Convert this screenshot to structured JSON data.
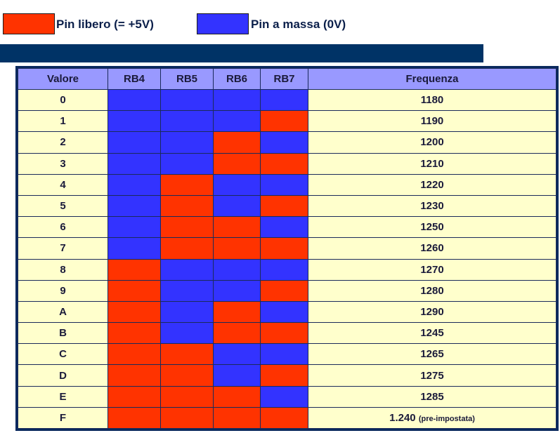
{
  "legend": [
    {
      "label": "Pin libero (= +5V)",
      "color": "#ff3300"
    },
    {
      "label": "Pin a massa (0V)",
      "color": "#3333ff"
    }
  ],
  "colors": {
    "high": "#ff3300",
    "low": "#3333ff"
  },
  "table": {
    "headers": [
      "Valore",
      "RB4",
      "RB5",
      "RB6",
      "RB7",
      "Frequenza"
    ],
    "rows": [
      {
        "valore": "0",
        "bits": [
          0,
          0,
          0,
          0
        ],
        "frequenza": "1180"
      },
      {
        "valore": "1",
        "bits": [
          0,
          0,
          0,
          1
        ],
        "frequenza": "1190"
      },
      {
        "valore": "2",
        "bits": [
          0,
          0,
          1,
          0
        ],
        "frequenza": "1200"
      },
      {
        "valore": "3",
        "bits": [
          0,
          0,
          1,
          1
        ],
        "frequenza": "1210"
      },
      {
        "valore": "4",
        "bits": [
          0,
          1,
          0,
          0
        ],
        "frequenza": "1220"
      },
      {
        "valore": "5",
        "bits": [
          0,
          1,
          0,
          1
        ],
        "frequenza": "1230"
      },
      {
        "valore": "6",
        "bits": [
          0,
          1,
          1,
          0
        ],
        "frequenza": "1250"
      },
      {
        "valore": "7",
        "bits": [
          0,
          1,
          1,
          1
        ],
        "frequenza": "1260"
      },
      {
        "valore": "8",
        "bits": [
          1,
          0,
          0,
          0
        ],
        "frequenza": "1270"
      },
      {
        "valore": "9",
        "bits": [
          1,
          0,
          0,
          1
        ],
        "frequenza": "1280"
      },
      {
        "valore": "A",
        "bits": [
          1,
          0,
          1,
          0
        ],
        "frequenza": "1290"
      },
      {
        "valore": "B",
        "bits": [
          1,
          0,
          1,
          1
        ],
        "frequenza": "1245"
      },
      {
        "valore": "C",
        "bits": [
          1,
          1,
          0,
          0
        ],
        "frequenza": "1265"
      },
      {
        "valore": "D",
        "bits": [
          1,
          1,
          0,
          1
        ],
        "frequenza": "1275"
      },
      {
        "valore": "E",
        "bits": [
          1,
          1,
          1,
          0
        ],
        "frequenza": "1285"
      },
      {
        "valore": "F",
        "bits": [
          1,
          1,
          1,
          1
        ],
        "frequenza": "1.240",
        "note": "(pre-impostata)"
      }
    ]
  }
}
